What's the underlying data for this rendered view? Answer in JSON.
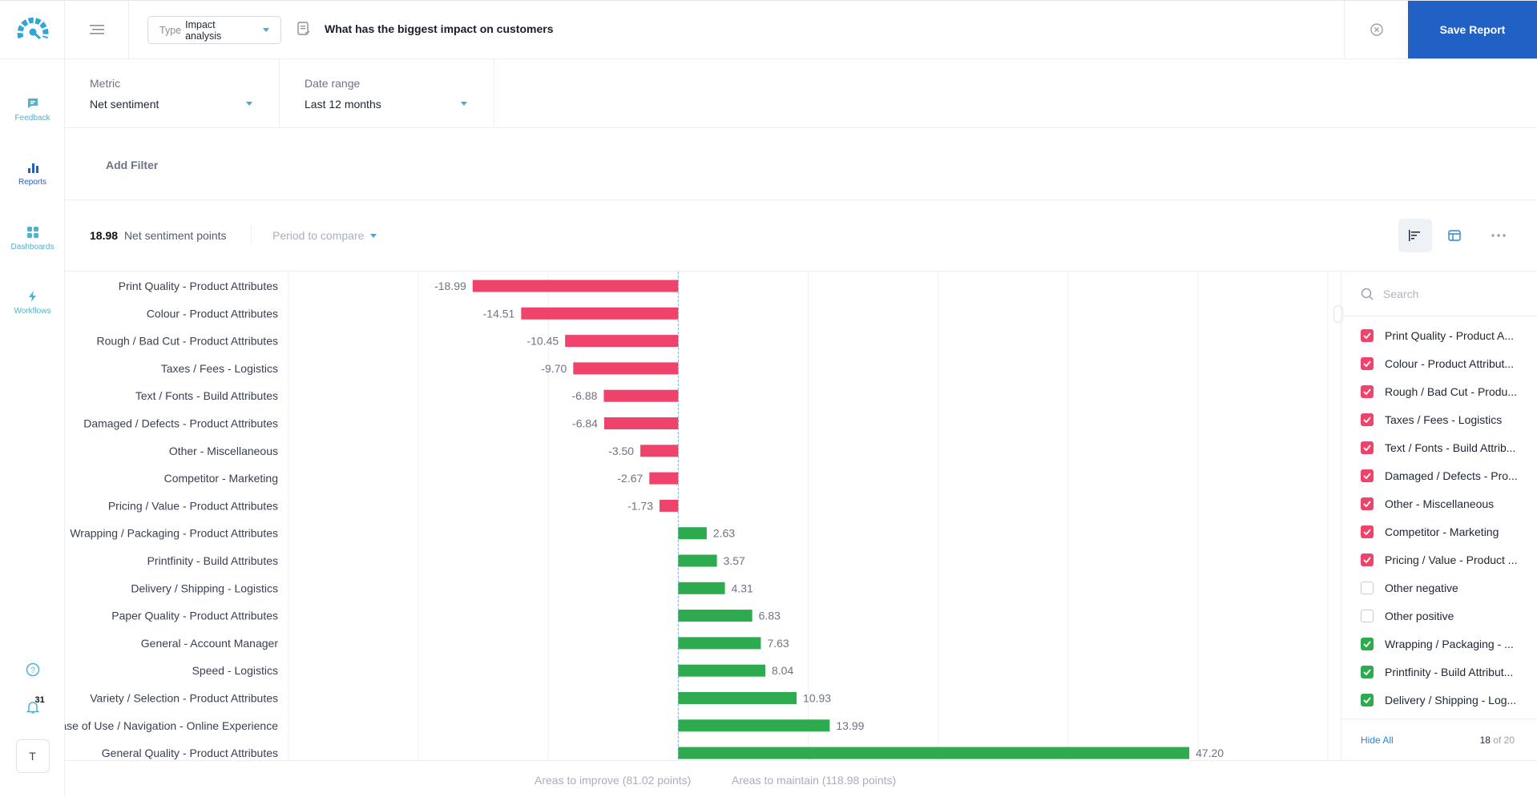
{
  "nav": {
    "items": [
      {
        "label": "Feedback",
        "icon": "chat-icon"
      },
      {
        "label": "Reports",
        "icon": "bar-chart-icon"
      },
      {
        "label": "Dashboards",
        "icon": "grid-icon"
      },
      {
        "label": "Workflows",
        "icon": "lightning-icon"
      }
    ],
    "notification_count": "31",
    "avatar_initial": "T"
  },
  "header": {
    "type_label": "Type",
    "type_value": "Impact analysis",
    "title": "What has the biggest impact on customers",
    "save_label": "Save Report"
  },
  "filters": {
    "metric_label": "Metric",
    "metric_value": "Net sentiment",
    "date_label": "Date range",
    "date_value": "Last 12 months",
    "add_filter": "Add Filter"
  },
  "summary": {
    "points_value": "18.98",
    "points_label": "Net sentiment points",
    "period_compare": "Period to compare"
  },
  "chart_data": {
    "type": "bar",
    "orientation": "horizontal",
    "categories": [
      "Print Quality - Product Attributes",
      "Colour - Product Attributes",
      "Rough / Bad Cut - Product Attributes",
      "Taxes / Fees - Logistics",
      "Text / Fonts - Build Attributes",
      "Damaged / Defects - Product Attributes",
      "Other - Miscellaneous",
      "Competitor - Marketing",
      "Pricing / Value - Product Attributes",
      "Wrapping / Packaging - Product Attributes",
      "Printfinity - Build Attributes",
      "Delivery / Shipping - Logistics",
      "Paper Quality - Product Attributes",
      "General - Account Manager",
      "Speed - Logistics",
      "Variety / Selection - Product Attributes",
      "Ease of Use / Navigation - Online Experience",
      "General Quality - Product Attributes"
    ],
    "values": [
      -18.99,
      -14.51,
      -10.45,
      -9.7,
      -6.88,
      -6.84,
      -3.5,
      -2.67,
      -1.73,
      2.63,
      3.57,
      4.31,
      6.83,
      7.63,
      8.04,
      10.93,
      13.99,
      47.2
    ],
    "labels": [
      "-18.99",
      "-14.51",
      "-10.45",
      "-9.70",
      "-6.88",
      "-6.84",
      "-3.50",
      "-2.67",
      "-1.73",
      "2.63",
      "3.57",
      "4.31",
      "6.83",
      "7.63",
      "8.04",
      "10.93",
      "13.99",
      "47.20"
    ],
    "xlim": [
      -36,
      60
    ],
    "negative_color": "#f0436b",
    "positive_color": "#2eaa4f"
  },
  "footer": {
    "improve": "Areas to improve (81.02 points)",
    "maintain": "Areas to maintain (118.98 points)"
  },
  "panel": {
    "search_placeholder": "Search",
    "items": [
      {
        "label": "Print Quality - Product A...",
        "state": "neg"
      },
      {
        "label": "Colour - Product Attribut...",
        "state": "neg"
      },
      {
        "label": "Rough / Bad Cut - Produ...",
        "state": "neg"
      },
      {
        "label": "Taxes / Fees - Logistics",
        "state": "neg"
      },
      {
        "label": "Text / Fonts - Build Attrib...",
        "state": "neg"
      },
      {
        "label": "Damaged / Defects - Pro...",
        "state": "neg"
      },
      {
        "label": "Other - Miscellaneous",
        "state": "neg"
      },
      {
        "label": "Competitor - Marketing",
        "state": "neg"
      },
      {
        "label": "Pricing / Value - Product ...",
        "state": "neg"
      },
      {
        "label": "Other negative",
        "state": "off"
      },
      {
        "label": "Other positive",
        "state": "off"
      },
      {
        "label": "Wrapping / Packaging - ...",
        "state": "pos"
      },
      {
        "label": "Printfinity - Build Attribut...",
        "state": "pos"
      },
      {
        "label": "Delivery / Shipping - Log...",
        "state": "pos"
      }
    ],
    "hide_all": "Hide All",
    "count_selected": "18",
    "count_total": "of 20"
  }
}
